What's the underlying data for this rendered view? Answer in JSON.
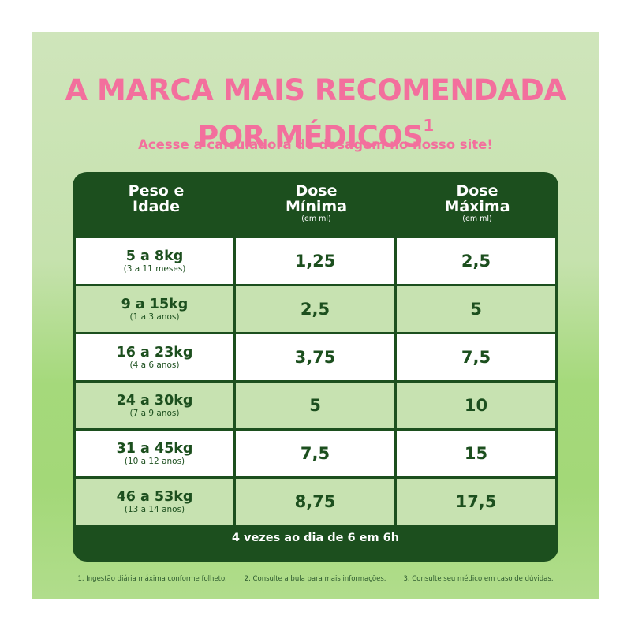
{
  "headline": {
    "line1": "A MARCA MAIS RECOMENDADA",
    "line2": "POR MÉDICOS",
    "sup": "1"
  },
  "subhead": "Acesse a calculadora de dosagem no nosso site!",
  "table": {
    "headers": [
      {
        "line1": "Peso e",
        "line2": "Idade",
        "unit": ""
      },
      {
        "line1": "Dose",
        "line2": "Mínima",
        "unit": "(em ml)"
      },
      {
        "line1": "Dose",
        "line2": "Máxima",
        "unit": "(em ml)"
      }
    ],
    "rows": [
      {
        "weight": "5 a 8kg",
        "age": "(3 a 11 meses)",
        "min": "1,25",
        "max": "2,5"
      },
      {
        "weight": "9 a 15kg",
        "age": "(1 a 3 anos)",
        "min": "2,5",
        "max": "5"
      },
      {
        "weight": "16 a 23kg",
        "age": "(4 a 6 anos)",
        "min": "3,75",
        "max": "7,5"
      },
      {
        "weight": "24 a 30kg",
        "age": "(7 a 9 anos)",
        "min": "5",
        "max": "10"
      },
      {
        "weight": "31 a 45kg",
        "age": "(10 a 12 anos)",
        "min": "7,5",
        "max": "15"
      },
      {
        "weight": "46 a 53kg",
        "age": "(13 a 14 anos)",
        "min": "8,75",
        "max": "17,5"
      }
    ],
    "footer": "4 vezes ao dia de 6 em 6h"
  },
  "notes": [
    "1. Ingestão diária máxima conforme folheto.",
    "2. Consulte a bula para mais informações.",
    "3. Consulte seu médico em caso de dúvidas."
  ],
  "colors": {
    "pink": "#f36f9d",
    "dark_green": "#1c4f1e",
    "light_green": "#c7e2b1"
  }
}
